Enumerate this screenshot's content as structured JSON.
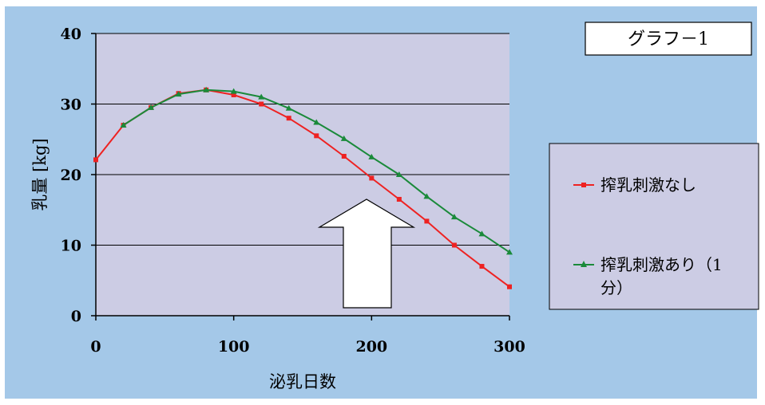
{
  "graph_label": "グラフ－1",
  "colors": {
    "outer_background": "#a4c8e8",
    "plot_background": "#cccce4",
    "series_1": "#ee2222",
    "series_2": "#1a8a3a",
    "gridline": "#000000"
  },
  "chart_data": {
    "type": "line",
    "title": "",
    "xlabel": "泌乳日数",
    "ylabel": "乳量 [kg]",
    "xlim": [
      0,
      300
    ],
    "ylim": [
      0,
      40
    ],
    "x_ticks": [
      0,
      100,
      200,
      300
    ],
    "y_ticks": [
      0,
      10,
      20,
      30,
      40
    ],
    "grid": "horizontal",
    "legend_position": "right",
    "series": [
      {
        "name": "搾乳刺激なし",
        "marker": "square",
        "x": [
          0,
          20,
          40,
          60,
          80,
          100,
          120,
          140,
          160,
          180,
          200,
          220,
          240,
          260,
          280,
          300
        ],
        "y": [
          22.1,
          27.0,
          29.5,
          31.5,
          32.0,
          31.3,
          30.0,
          28.0,
          25.5,
          22.6,
          19.5,
          16.5,
          13.4,
          10.0,
          7.0,
          4.1
        ]
      },
      {
        "name": "搾乳刺激あり（1分）",
        "name_lines": [
          "搾乳刺激あり（1",
          "分）"
        ],
        "marker": "triangle",
        "x": [
          20,
          40,
          60,
          80,
          100,
          120,
          140,
          160,
          180,
          200,
          220,
          240,
          260,
          280,
          300
        ],
        "y": [
          27.0,
          29.5,
          31.4,
          32.0,
          31.8,
          31.0,
          29.4,
          27.4,
          25.1,
          22.5,
          20.0,
          16.9,
          14.0,
          11.6,
          9.0
        ]
      }
    ],
    "annotations": [
      "up-arrow"
    ]
  }
}
